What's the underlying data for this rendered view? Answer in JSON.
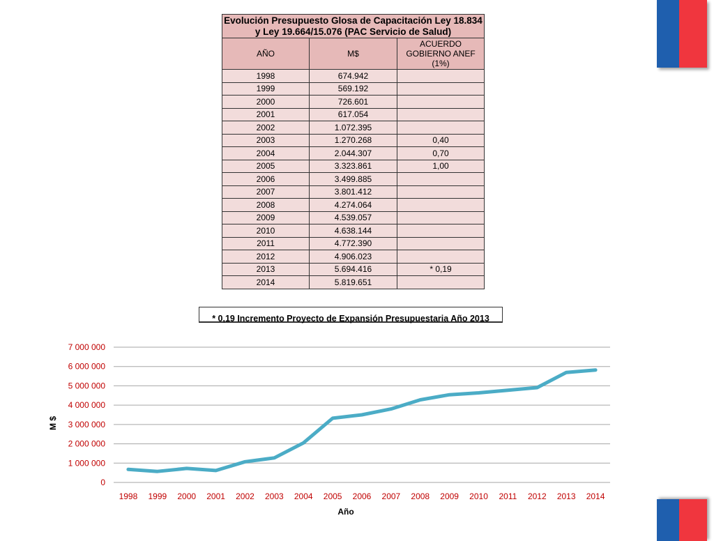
{
  "table": {
    "title": "Evolución Presupuesto Glosa de Capacitación Ley 18.834 y Ley 19.664/15.076 (PAC Servicio de Salud)",
    "headers": [
      "AÑO",
      "M$",
      "ACUERDO GOBIERNO ANEF (1%)"
    ],
    "rows": [
      [
        "1998",
        "674.942",
        ""
      ],
      [
        "1999",
        "569.192",
        ""
      ],
      [
        "2000",
        "726.601",
        ""
      ],
      [
        "2001",
        "617.054",
        ""
      ],
      [
        "2002",
        "1.072.395",
        ""
      ],
      [
        "2003",
        "1.270.268",
        "0,40"
      ],
      [
        "2004",
        "2.044.307",
        "0,70"
      ],
      [
        "2005",
        "3.323.861",
        "1,00"
      ],
      [
        "2006",
        "3.499.885",
        ""
      ],
      [
        "2007",
        "3.801.412",
        ""
      ],
      [
        "2008",
        "4.274.064",
        ""
      ],
      [
        "2009",
        "4.539.057",
        ""
      ],
      [
        "2010",
        "4.638.144",
        ""
      ],
      [
        "2011",
        "4.772.390",
        ""
      ],
      [
        "2012",
        "4.906.023",
        ""
      ],
      [
        "2013",
        "5.694.416",
        "* 0,19"
      ],
      [
        "2014",
        "5.819.651",
        ""
      ]
    ]
  },
  "note": "* 0,19 Incremento Proyecto de Expansión Presupuestaria Año 2013",
  "chart_data": {
    "type": "line",
    "title": "",
    "xlabel": "Año",
    "ylabel": "M $",
    "categories": [
      "1998",
      "1999",
      "2000",
      "2001",
      "2002",
      "2003",
      "2004",
      "2005",
      "2006",
      "2007",
      "2008",
      "2009",
      "2010",
      "2011",
      "2012",
      "2013",
      "2014"
    ],
    "series": [
      {
        "values": [
          674942,
          569192,
          726601,
          617054,
          1072395,
          1270268,
          2044307,
          3323861,
          3499885,
          3801412,
          4274064,
          4539057,
          4638144,
          4772390,
          4906023,
          5694416,
          5819651
        ]
      }
    ],
    "ylim": [
      0,
      7000000
    ],
    "yticks": [
      "0",
      "1 000 000",
      "2 000 000",
      "3 000 000",
      "4 000 000",
      "5 000 000",
      "6 000 000",
      "7 000 000"
    ],
    "grid": true,
    "legend": "none",
    "line_color": "#4bacc6",
    "tick_color": "#c00000"
  },
  "colors": {
    "header_bg": "#e6b9b8",
    "cell_bg": "#f2dcdb",
    "flag_blue": "#1f5fae",
    "flag_red": "#f0363e"
  }
}
